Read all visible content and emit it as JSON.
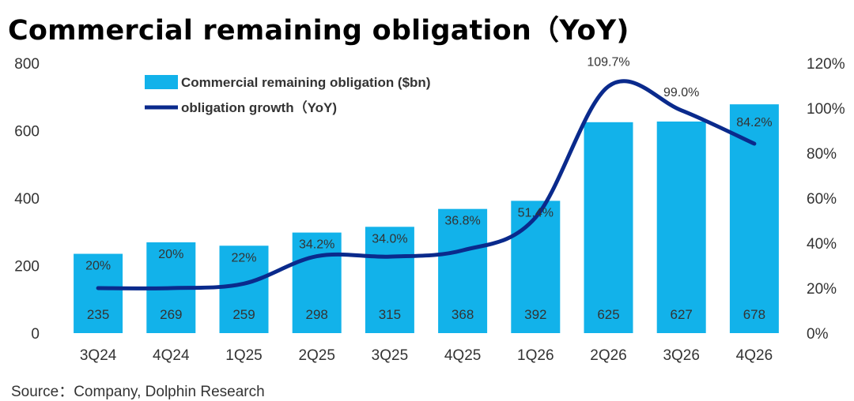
{
  "chart_data": {
    "type": "bar",
    "title": "Commercial remaining obligation（YoY)",
    "categories": [
      "3Q24",
      "4Q24",
      "1Q25",
      "2Q25",
      "3Q25",
      "4Q25",
      "1Q26",
      "2Q26",
      "3Q26",
      "4Q26"
    ],
    "series": [
      {
        "name": "Commercial remaining obligation ($bn)",
        "type": "bar",
        "axis": "left",
        "color": "#12b2ea",
        "values": [
          235,
          269,
          259,
          298,
          315,
          368,
          392,
          625,
          627,
          678
        ]
      },
      {
        "name": "obligation growth（YoY)",
        "type": "line",
        "axis": "right",
        "color": "#0a2a8c",
        "values": [
          20,
          20,
          22,
          34.2,
          34.0,
          36.8,
          51.4,
          109.7,
          99.0,
          84.2
        ],
        "labels": [
          "20%",
          "20%",
          "22%",
          "34.2%",
          "34.0%",
          "36.8%",
          "51.4%",
          "109.7%",
          "99.0%",
          "84.2%"
        ]
      }
    ],
    "ylim_left": [
      0,
      800
    ],
    "yticks_left": [
      "0",
      "200",
      "400",
      "600",
      "800"
    ],
    "ylim_right": [
      0,
      120
    ],
    "yticks_right": [
      "0%",
      "20%",
      "40%",
      "60%",
      "80%",
      "100%",
      "120%"
    ],
    "grid": false,
    "legend_position": "top-left"
  },
  "source": "Source：Company, Dolphin Research"
}
